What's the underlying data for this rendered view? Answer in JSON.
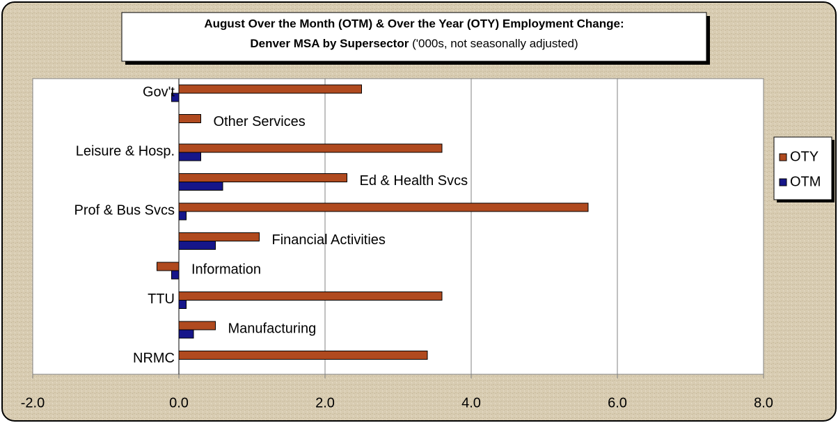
{
  "chart_data": {
    "type": "bar",
    "orientation": "horizontal",
    "title": [
      "August Over the Month (OTM) & Over the Year (OTY) Employment Change:",
      "Denver MSA by Supersector"
    ],
    "subtitle": "('000s, not seasonally adjusted)",
    "categories": [
      "NRMC",
      "Manufacturing",
      "TTU",
      "Information",
      "Financial Activities",
      "Prof & Bus Svcs",
      "Ed & Health Svcs",
      "Leisure & Hosp.",
      "Other Services",
      "Gov't"
    ],
    "series": [
      {
        "name": "OTY",
        "color": "#b04a1f",
        "values": [
          3.4,
          0.5,
          3.6,
          -0.3,
          1.1,
          5.6,
          2.3,
          3.6,
          0.3,
          2.5
        ]
      },
      {
        "name": "OTM",
        "color": "#16168a",
        "values": [
          0,
          0.2,
          0.1,
          -0.1,
          0.5,
          0.1,
          0.6,
          0.3,
          0,
          -0.1
        ]
      }
    ],
    "xlim": [
      -2,
      8
    ],
    "xticks": [
      {
        "value": -2,
        "label": "-2.0"
      },
      {
        "value": 0,
        "label": "0.0"
      },
      {
        "value": 2,
        "label": "2.0"
      },
      {
        "value": 4,
        "label": "4.0"
      },
      {
        "value": 6,
        "label": "6.0"
      },
      {
        "value": 8,
        "label": "8.0"
      }
    ],
    "grid": true,
    "legend": "right"
  }
}
